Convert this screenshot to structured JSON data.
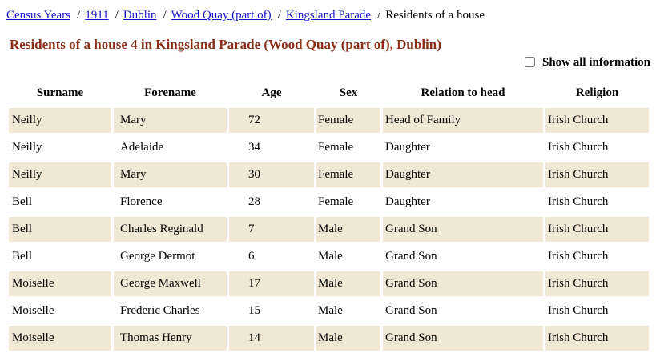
{
  "breadcrumb": {
    "separator": "/",
    "items": [
      {
        "label": "Census Years",
        "is_link": true
      },
      {
        "label": "1911",
        "is_link": true
      },
      {
        "label": "Dublin",
        "is_link": true
      },
      {
        "label": "Wood Quay (part of)",
        "is_link": true
      },
      {
        "label": "Kingsland Parade",
        "is_link": true
      },
      {
        "label": "Residents of a house",
        "is_link": false
      }
    ]
  },
  "page": {
    "title": "Residents of a house 4 in Kingsland Parade (Wood Quay (part of), Dublin)"
  },
  "controls": {
    "show_all_checkbox": {
      "label": "Show all information",
      "checked": false
    }
  },
  "residents_table": {
    "headers": [
      "Surname",
      "Forename",
      "Age",
      "Sex",
      "Relation to head",
      "Religion"
    ],
    "rows": [
      [
        "Neilly",
        "Mary",
        "72",
        "Female",
        "Head of Family",
        "Irish Church"
      ],
      [
        "Neilly",
        "Adelaide",
        "34",
        "Female",
        "Daughter",
        "Irish Church"
      ],
      [
        "Neilly",
        "Mary",
        "30",
        "Female",
        "Daughter",
        "Irish Church"
      ],
      [
        "Bell",
        "Florence",
        "28",
        "Female",
        "Daughter",
        "Irish Church"
      ],
      [
        "Bell",
        "Charles Reginald",
        "7",
        "Male",
        "Grand Son",
        "Irish Church"
      ],
      [
        "Bell",
        "George Dermot",
        "6",
        "Male",
        "Grand Son",
        "Irish Church"
      ],
      [
        "Moiselle",
        "George Maxwell",
        "17",
        "Male",
        "Grand Son",
        "Irish Church"
      ],
      [
        "Moiselle",
        "Frederic Charles",
        "15",
        "Male",
        "Grand Son",
        "Irish Church"
      ],
      [
        "Moiselle",
        "Thomas Henry",
        "14",
        "Male",
        "Grand Son",
        "Irish Church"
      ]
    ]
  },
  "colors": {
    "row_stripe": "#f0e8d5",
    "title": "#8b2e17",
    "link": "#1414cc"
  }
}
